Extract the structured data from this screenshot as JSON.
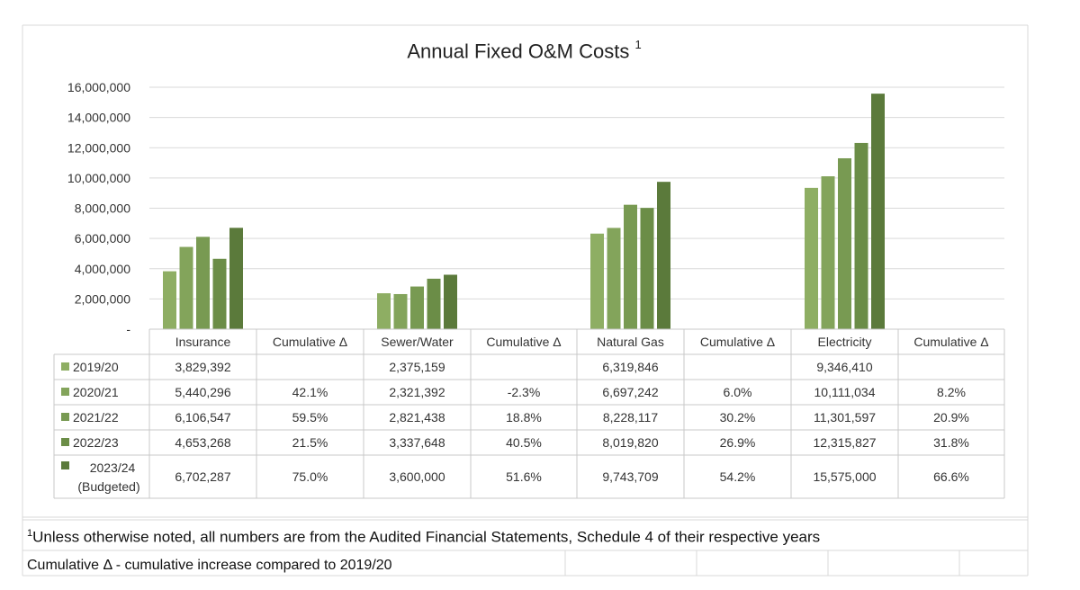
{
  "chart_data": {
    "type": "bar",
    "title": "Annual Fixed O&M Costs",
    "title_superscript": "1",
    "categories": [
      "Insurance",
      "Sewer/Water",
      "Natural Gas",
      "Electricity"
    ],
    "ylim": [
      0,
      16000000
    ],
    "yticks": [
      0,
      2000000,
      4000000,
      6000000,
      8000000,
      10000000,
      12000000,
      14000000,
      16000000
    ],
    "ytick_labels": [
      "-",
      "2,000,000",
      "4,000,000",
      "6,000,000",
      "8,000,000",
      "10,000,000",
      "12,000,000",
      "14,000,000",
      "16,000,000"
    ],
    "grid": true,
    "series": [
      {
        "name": "2019/20",
        "values": [
          3829392,
          2375159,
          6319846,
          9346410
        ],
        "labels": [
          "3,829,392",
          "2,375,159",
          "6,319,846",
          "9,346,410"
        ],
        "cumulative": [
          "",
          "",
          "",
          ""
        ],
        "color": "#8eae63"
      },
      {
        "name": "2020/21",
        "values": [
          5440296,
          2321392,
          6697242,
          10111034
        ],
        "labels": [
          "5,440,296",
          "2,321,392",
          "6,697,242",
          "10,111,034"
        ],
        "cumulative": [
          "42.1%",
          "-2.3%",
          "6.0%",
          "8.2%"
        ],
        "color": "#83a45b"
      },
      {
        "name": "2021/22",
        "values": [
          6106547,
          2821438,
          8228117,
          11301597
        ],
        "labels": [
          "6,106,547",
          "2,821,438",
          "8,228,117",
          "11,301,597"
        ],
        "cumulative": [
          "59.5%",
          "18.8%",
          "30.2%",
          "20.9%"
        ],
        "color": "#789a52"
      },
      {
        "name": "2022/23",
        "values": [
          4653268,
          3337648,
          8019820,
          12315827
        ],
        "labels": [
          "4,653,268",
          "3,337,648",
          "8,019,820",
          "12,315,827"
        ],
        "cumulative": [
          "21.5%",
          "40.5%",
          "26.9%",
          "31.8%"
        ],
        "color": "#6b8d47"
      },
      {
        "name": "2023/24",
        "name_line2": "(Budgeted)",
        "values": [
          6702287,
          3600000,
          9743709,
          15575000
        ],
        "labels": [
          "6,702,287",
          "3,600,000",
          "9,743,709",
          "15,575,000"
        ],
        "cumulative": [
          "75.0%",
          "51.6%",
          "54.2%",
          "66.6%"
        ],
        "color": "#5b7a3b"
      }
    ],
    "table_header_extra": "Cumulative Δ",
    "legend_placement": "data-table"
  },
  "footnotes": {
    "note1_marker": "1",
    "note1": "Unless otherwise noted, all numbers are from the Audited Financial Statements, Schedule 4 of their respective years",
    "note2": "Cumulative Δ - cumulative increase compared to 2019/20"
  }
}
